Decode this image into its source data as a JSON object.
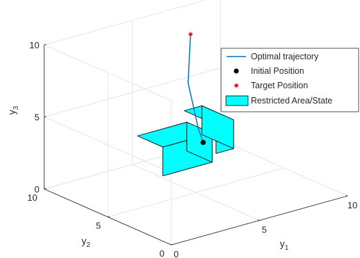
{
  "chart_data": {
    "type": "line",
    "title": "",
    "axes": {
      "x": {
        "label": "y",
        "label_sub": "1",
        "range": [
          0,
          10
        ],
        "ticks": [
          0,
          5,
          10
        ]
      },
      "y": {
        "label": "y",
        "label_sub": "2",
        "range": [
          0,
          10
        ],
        "ticks": [
          0,
          5,
          10
        ]
      },
      "z": {
        "label": "y",
        "label_sub": "3",
        "range": [
          0,
          10
        ],
        "ticks": [
          0,
          5,
          10
        ]
      }
    },
    "grid": true,
    "legend_position": "top-right",
    "legend": [
      {
        "key": "trajectory",
        "label": "Optimal trajectory"
      },
      {
        "key": "initial",
        "label": "Initial Position"
      },
      {
        "key": "target",
        "label": "Target Position"
      },
      {
        "key": "restricted",
        "label": "Restricted Area/State"
      }
    ],
    "series": [
      {
        "key": "trajectory",
        "name": "Optimal trajectory",
        "color": "#0072BD",
        "points": [
          [
            8.3,
            9.0,
            0.8
          ],
          [
            7.3,
            8.0,
            2.5
          ],
          [
            6.0,
            7.0,
            6.5
          ],
          [
            6.5,
            7.5,
            9.5
          ]
        ]
      }
    ],
    "markers": [
      {
        "key": "initial",
        "name": "Initial Position",
        "color": "#000000",
        "point": [
          8.3,
          9.0,
          0.8
        ]
      },
      {
        "key": "target",
        "name": "Target Position",
        "color": "#FF0000",
        "point": [
          6.5,
          7.5,
          9.5
        ]
      }
    ],
    "boxes": [
      {
        "name": "Restricted Area/State",
        "color": "#00FFFF",
        "min": [
          0.6,
          1.5,
          4.0
        ],
        "max": [
          3.4,
          3.5,
          6.0
        ]
      },
      {
        "name": "Restricted Area/State",
        "color": "#00FFFF",
        "min": [
          6.5,
          5.5,
          2.0
        ],
        "max": [
          7.5,
          8.0,
          4.0
        ]
      }
    ]
  }
}
